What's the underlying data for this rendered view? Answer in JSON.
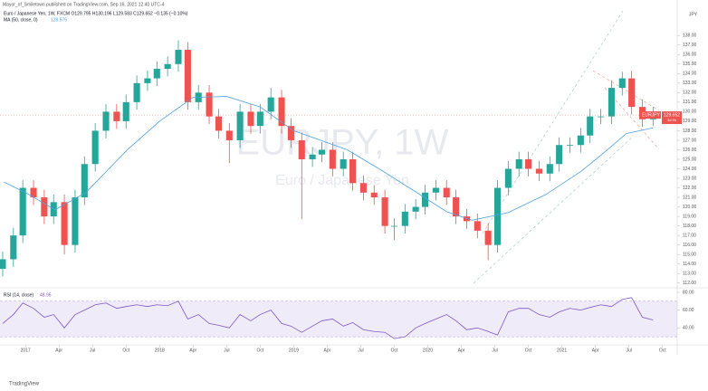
{
  "header": {
    "author_line": "Mayor_of_Smiletown published on TradingView.com, Sep 16, 2021 12:40 UTC-4",
    "symbol_line": "Euro / Japanese Yen, 1W, FXCM  O129.795 H130.196 L129.583 C129.652 −0.135 (−0.10%)",
    "currency": "JPY",
    "footer": "TradingView"
  },
  "chart_data": [
    {
      "type": "candlestick",
      "watermark": "EURJPY, 1W",
      "watermark_sub": "Euro / Japanese Yen",
      "x": [
        2016.83,
        2016.91,
        2016.98,
        2017.06,
        2017.14,
        2017.21,
        2017.29,
        2017.37,
        2017.44,
        2017.52,
        2017.6,
        2017.68,
        2017.75,
        2017.83,
        2017.91,
        2017.98,
        2018.06,
        2018.14,
        2018.21,
        2018.29,
        2018.37,
        2018.44,
        2018.52,
        2018.6,
        2018.68,
        2018.75,
        2018.83,
        2018.91,
        2018.98,
        2019.06,
        2019.14,
        2019.21,
        2019.29,
        2019.37,
        2019.44,
        2019.52,
        2019.6,
        2019.68,
        2019.75,
        2019.83,
        2019.91,
        2019.98,
        2020.06,
        2020.14,
        2020.21,
        2020.29,
        2020.37,
        2020.45,
        2020.52,
        2020.6,
        2020.68,
        2020.75,
        2020.83,
        2020.91,
        2020.98,
        2021.06,
        2021.14,
        2021.21,
        2021.29,
        2021.37,
        2021.45,
        2021.52,
        2021.6,
        2021.68
      ],
      "open": [
        113.5,
        114.5,
        117,
        122,
        121,
        119,
        120.5,
        116,
        121,
        124.5,
        128,
        130,
        129,
        131,
        133,
        133.5,
        134.5,
        135,
        136.5,
        131,
        132,
        129.5,
        128,
        127,
        130,
        128.5,
        130,
        131.5,
        128.5,
        127,
        125,
        125.5,
        126,
        124,
        125,
        122.5,
        121.5,
        121,
        118,
        118,
        119.5,
        120,
        121.5,
        122,
        121,
        119,
        118.5,
        117.5,
        116,
        122,
        124,
        125,
        124,
        123.5,
        124.5,
        126.5,
        126.5,
        127.5,
        129.5,
        129.5,
        132.5,
        133.5,
        130.5,
        129.2
      ],
      "high": [
        115.3,
        117.8,
        122.8,
        122.8,
        121.8,
        121.3,
        121.3,
        121.8,
        125.3,
        128.8,
        130.8,
        130.8,
        131.8,
        133.8,
        134.3,
        135.3,
        135.8,
        137.5,
        137.3,
        132.8,
        132.8,
        130.3,
        128.8,
        130.8,
        130.8,
        130.8,
        132.5,
        132.3,
        129.3,
        127.8,
        126.3,
        126.8,
        126.8,
        125.8,
        125.8,
        123.3,
        122.3,
        121.8,
        118.8,
        120.3,
        120.8,
        122.3,
        122.8,
        122.8,
        121.8,
        119.8,
        119.3,
        118.3,
        122.8,
        124.8,
        125.8,
        125.8,
        124.8,
        125.3,
        127.3,
        127.3,
        128.3,
        130.3,
        130.3,
        133.3,
        134.2,
        134.3,
        131.3,
        130.5
      ],
      "low": [
        112.7,
        113.7,
        116.2,
        120.2,
        118.2,
        118.2,
        115,
        115.2,
        120.2,
        123.7,
        127.2,
        128.2,
        128.2,
        130.2,
        132.2,
        132.7,
        133.7,
        134.2,
        130.2,
        130.2,
        128.7,
        127.2,
        124.6,
        126.2,
        127.7,
        127.7,
        129.2,
        127.7,
        126.2,
        118.7,
        124.2,
        124.7,
        123.2,
        123.2,
        121.7,
        120.7,
        120.2,
        117.2,
        116.5,
        117.2,
        118.7,
        119.2,
        120.7,
        120.2,
        118.2,
        117.7,
        116.7,
        114.4,
        115.2,
        121.2,
        123.2,
        123.2,
        122.7,
        122.7,
        123.7,
        125.7,
        125.7,
        126.7,
        128.7,
        128.7,
        131.7,
        129.7,
        128.4,
        128.5
      ],
      "close": [
        114.5,
        117,
        122,
        121,
        119,
        120.5,
        116,
        121,
        124.5,
        128,
        130,
        129,
        131,
        133,
        133.5,
        134.5,
        135,
        136.5,
        131,
        132,
        129.5,
        128,
        127,
        130,
        128.5,
        130,
        131.5,
        128.5,
        127,
        125,
        125.5,
        126,
        124,
        125,
        122.5,
        121.5,
        121,
        118,
        118,
        119.5,
        120,
        121.5,
        122,
        121,
        119,
        118.5,
        117.5,
        116,
        122,
        124,
        125,
        124,
        123.5,
        124.5,
        126.5,
        126.5,
        127.5,
        129.5,
        129.5,
        132.5,
        133.5,
        130.5,
        129.2,
        129.65
      ],
      "up_color": "#26a69a",
      "down_color": "#ef5350",
      "last_price": {
        "name": "EURJPY",
        "value": 129.652,
        "label": "129.652",
        "countdown": "3d 9h",
        "color": "#ef5350"
      },
      "series": [
        {
          "name": "MA (50, close, 0)",
          "last_label": "128.576",
          "color": "#4fa3e0",
          "x": [
            2016.84,
            2017.0,
            2017.22,
            2017.45,
            2017.76,
            2018.0,
            2018.25,
            2018.5,
            2018.75,
            2019.0,
            2019.4,
            2019.66,
            2019.93,
            2020.14,
            2020.33,
            2020.6,
            2020.88,
            2021.14,
            2021.34,
            2021.48,
            2021.68
          ],
          "values": [
            122.6,
            121.5,
            119.7,
            121.5,
            126,
            129,
            131.5,
            131.6,
            130.5,
            128,
            126,
            123.8,
            121.4,
            119.5,
            118.6,
            119.4,
            121.3,
            123.7,
            126,
            127.7,
            128.3
          ]
        }
      ],
      "ylim": [
        111.5,
        140.4
      ],
      "yticks": [
        {
          "value": 112,
          "label": "112.00"
        },
        {
          "value": 113,
          "label": "113.00"
        },
        {
          "value": 114,
          "label": "114.00"
        },
        {
          "value": 115,
          "label": "115.00"
        },
        {
          "value": 116,
          "label": "116.00"
        },
        {
          "value": 117,
          "label": "117.00"
        },
        {
          "value": 118,
          "label": "118.00"
        },
        {
          "value": 119,
          "label": "119.00"
        },
        {
          "value": 120,
          "label": "120.00"
        },
        {
          "value": 121,
          "label": "121.00"
        },
        {
          "value": 122,
          "label": "122.00"
        },
        {
          "value": 123,
          "label": "123.00"
        },
        {
          "value": 124,
          "label": "124.00"
        },
        {
          "value": 125,
          "label": "125.00"
        },
        {
          "value": 126,
          "label": "126.00"
        },
        {
          "value": 127,
          "label": "127.00"
        },
        {
          "value": 128,
          "label": "128.00"
        },
        {
          "value": 129,
          "label": "129.00"
        },
        {
          "value": 130,
          "label": "130.00"
        },
        {
          "value": 131,
          "label": "131.00"
        },
        {
          "value": 132,
          "label": "132.00"
        },
        {
          "value": 133,
          "label": "133.00"
        },
        {
          "value": 134,
          "label": "134.00"
        },
        {
          "value": 135,
          "label": "135.00"
        },
        {
          "value": 136,
          "label": "136.00"
        },
        {
          "value": 137,
          "label": "137.00"
        },
        {
          "value": 138,
          "label": "138.00"
        }
      ],
      "xlim": [
        2016.81,
        2021.86
      ],
      "xticks": [
        {
          "value": 2017.0,
          "label": "2017"
        },
        {
          "value": 2017.25,
          "label": "Apr"
        },
        {
          "value": 2017.5,
          "label": "Jul"
        },
        {
          "value": 2017.75,
          "label": "Oct"
        },
        {
          "value": 2018.0,
          "label": "2018"
        },
        {
          "value": 2018.25,
          "label": "Apr"
        },
        {
          "value": 2018.5,
          "label": "Jul"
        },
        {
          "value": 2018.75,
          "label": "Oct"
        },
        {
          "value": 2019.0,
          "label": "2019"
        },
        {
          "value": 2019.25,
          "label": "Apr"
        },
        {
          "value": 2019.5,
          "label": "Jul"
        },
        {
          "value": 2019.75,
          "label": "Oct"
        },
        {
          "value": 2020.0,
          "label": "2020"
        },
        {
          "value": 2020.25,
          "label": "Apr"
        },
        {
          "value": 2020.5,
          "label": "Jul"
        },
        {
          "value": 2020.75,
          "label": "Oct"
        },
        {
          "value": 2021.0,
          "label": "2021"
        },
        {
          "value": 2021.25,
          "label": "Apr"
        },
        {
          "value": 2021.5,
          "label": "Jul"
        },
        {
          "value": 2021.75,
          "label": "Oct"
        }
      ]
    },
    {
      "type": "line",
      "title": "RSI (14, close)",
      "last_label": "48.95",
      "color": "#7e57c2",
      "band": [
        30,
        70
      ],
      "x": [
        2016.83,
        2016.91,
        2016.98,
        2017.06,
        2017.14,
        2017.21,
        2017.29,
        2017.37,
        2017.44,
        2017.52,
        2017.6,
        2017.68,
        2017.75,
        2017.83,
        2017.91,
        2017.98,
        2018.06,
        2018.14,
        2018.21,
        2018.29,
        2018.37,
        2018.44,
        2018.52,
        2018.6,
        2018.68,
        2018.75,
        2018.83,
        2018.91,
        2018.98,
        2019.06,
        2019.14,
        2019.21,
        2019.29,
        2019.37,
        2019.44,
        2019.52,
        2019.6,
        2019.68,
        2019.75,
        2019.83,
        2019.91,
        2019.98,
        2020.06,
        2020.14,
        2020.21,
        2020.29,
        2020.37,
        2020.45,
        2020.52,
        2020.6,
        2020.68,
        2020.75,
        2020.83,
        2020.91,
        2020.98,
        2021.06,
        2021.14,
        2021.21,
        2021.29,
        2021.37,
        2021.45,
        2021.52,
        2021.6,
        2021.68
      ],
      "values": [
        45,
        55,
        68,
        62,
        52,
        55,
        40,
        55,
        60,
        66,
        68,
        62,
        64,
        66,
        64,
        66,
        65,
        70,
        50,
        55,
        45,
        43,
        40,
        55,
        48,
        55,
        60,
        45,
        42,
        35,
        42,
        48,
        50,
        42,
        46,
        38,
        36,
        35,
        28,
        30,
        40,
        45,
        50,
        55,
        48,
        38,
        40,
        36,
        32,
        58,
        62,
        62,
        55,
        52,
        58,
        62,
        60,
        63,
        66,
        64,
        72,
        74,
        52,
        48.95
      ],
      "ylim": [
        22,
        82
      ],
      "yticks": [
        {
          "value": 40,
          "label": "40.00"
        },
        {
          "value": 60,
          "label": "60.00"
        },
        {
          "value": 80,
          "label": "80.00"
        }
      ]
    }
  ]
}
